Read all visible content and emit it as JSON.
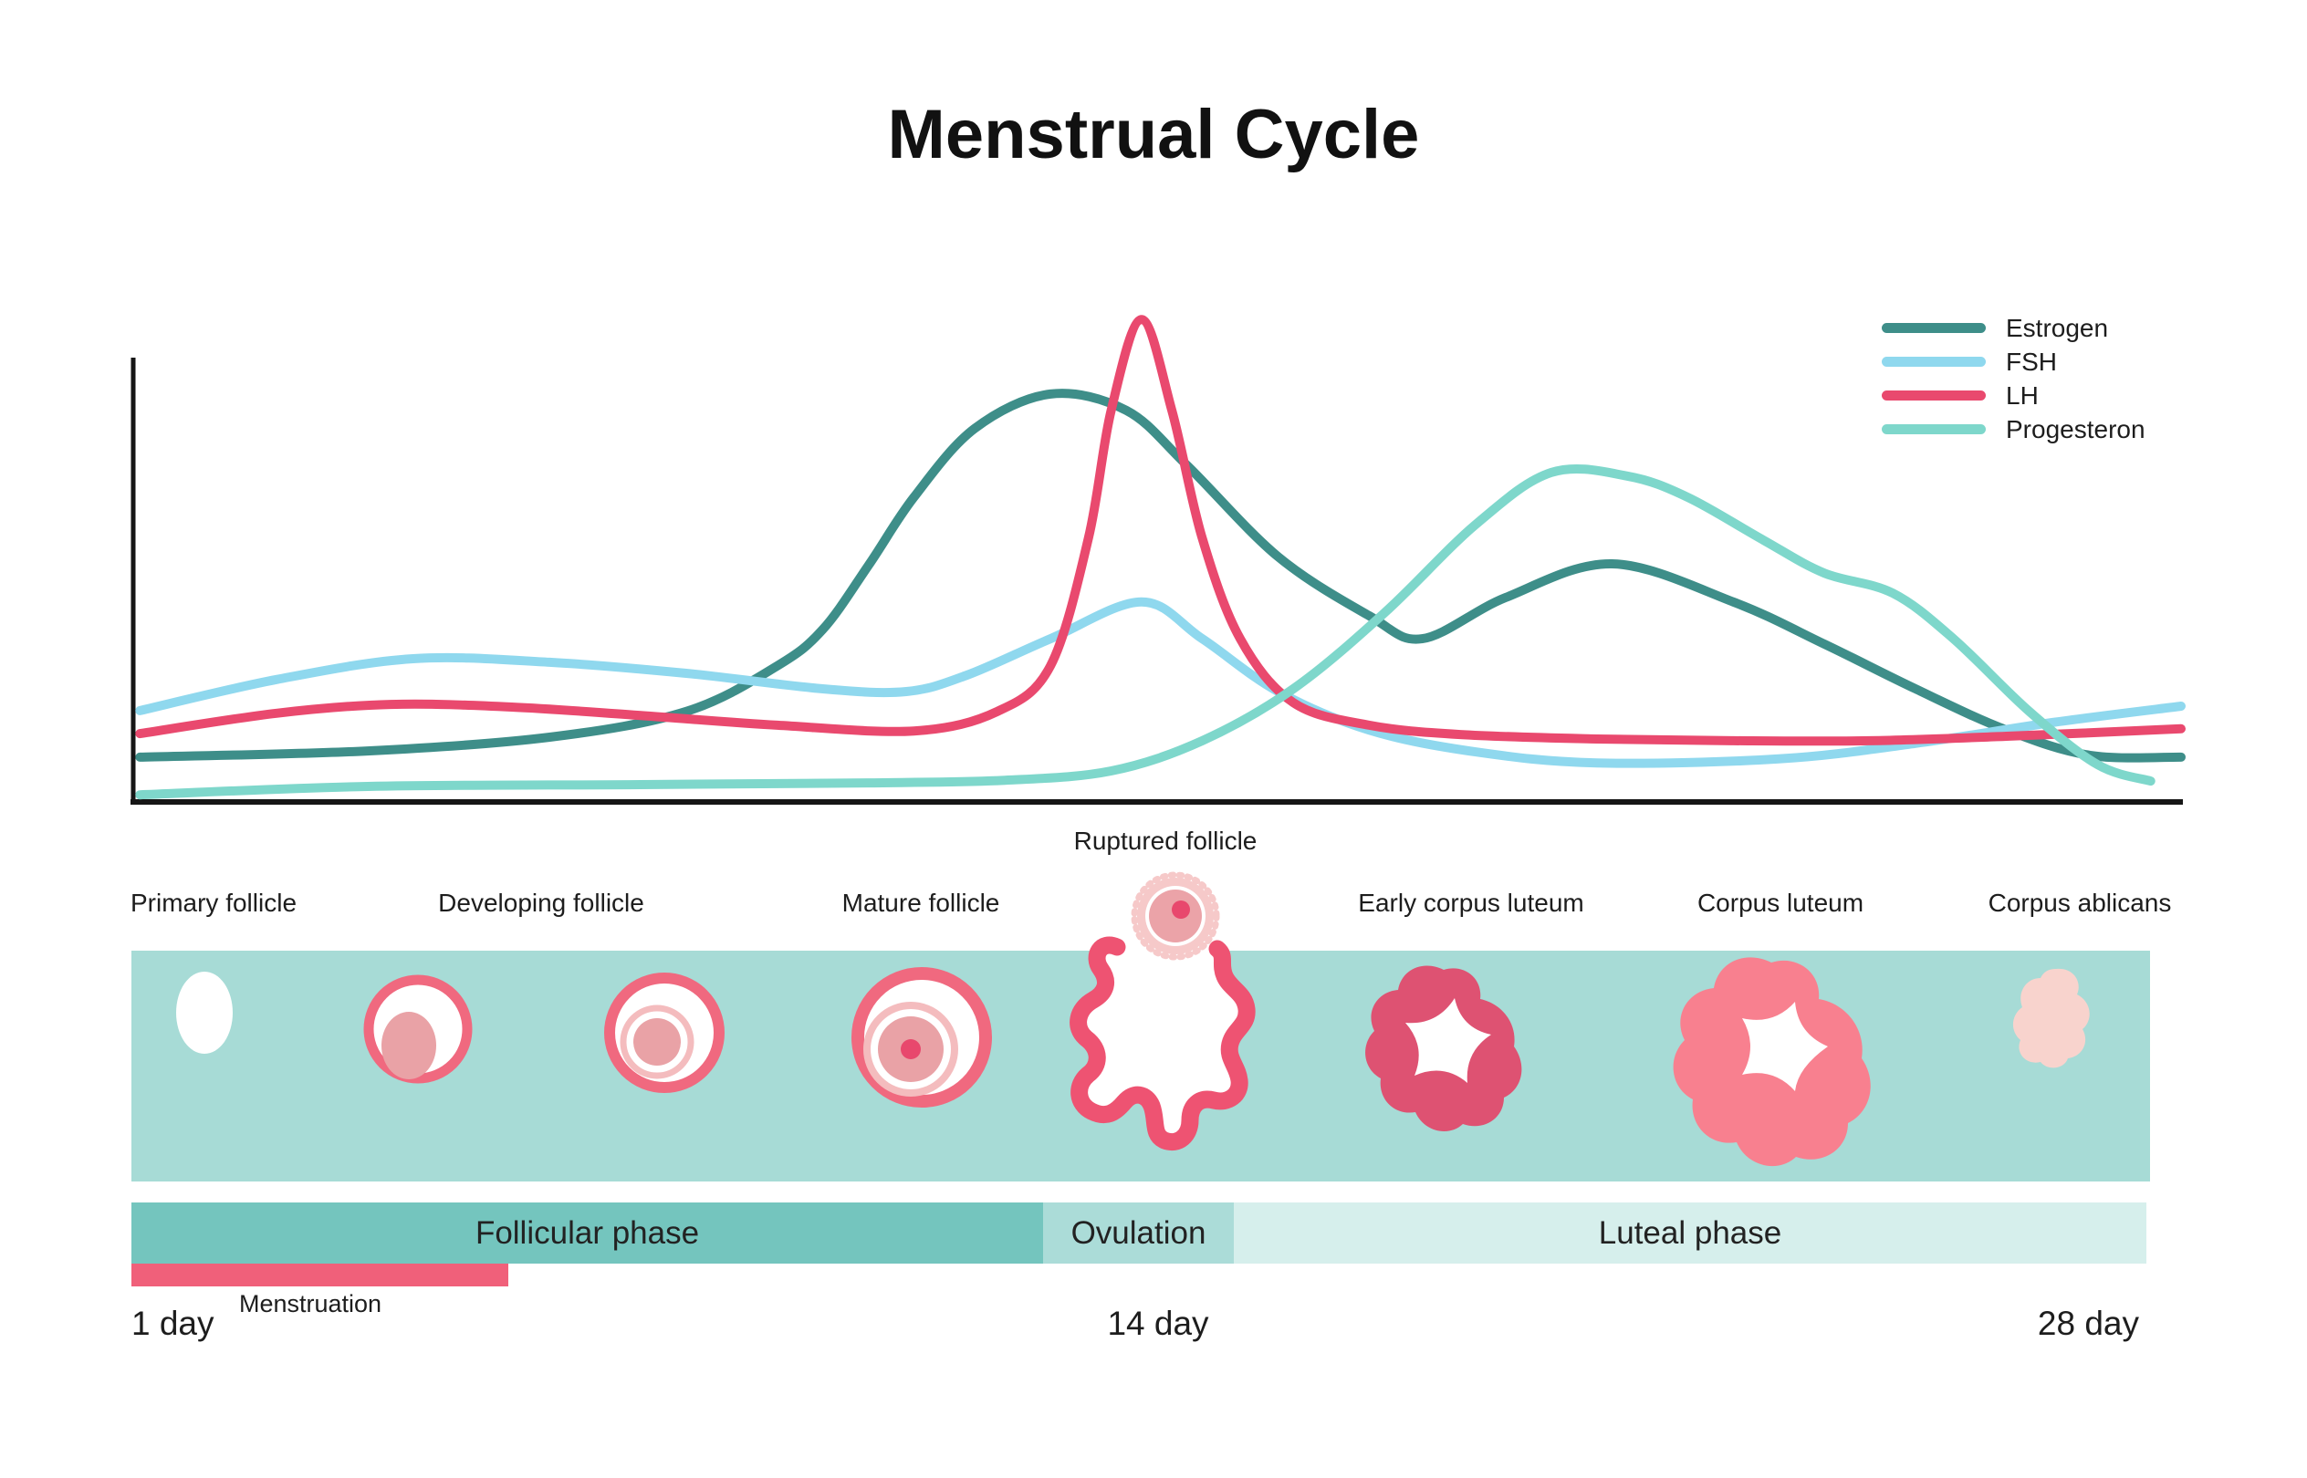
{
  "title": "Menstrual Cycle",
  "colors": {
    "background": "#FFFFFF",
    "estrogen": "#3E8E89",
    "fsh": "#8FD8EE",
    "lh": "#E9496E",
    "progesteron": "#7ED7CB",
    "ovary_band": "#A7DBD6",
    "follicular_bar": "#74C5BE",
    "ovulation_bar": "#ABDCD8",
    "luteal_bar": "#D6EFEC",
    "menstruation_bar": "#F0607A",
    "follicle_ring": "#F0697F",
    "follicle_inner": "#E9A2A6",
    "follicle_light_ring": "#F4BCBE",
    "ovum_dot": "#E8486D",
    "ruptured_outline": "#EE5372",
    "early_corpus_luteum": "#DE5272",
    "corpus_luteum": "#F8808F",
    "corpus_ablicans": "#F8D3CD",
    "axis": "#161616"
  },
  "chart_data": {
    "type": "line",
    "title": "Menstrual Cycle",
    "xlabel": "",
    "ylabel": "",
    "x_axis": {
      "unit": "day",
      "range": [
        1,
        28
      ],
      "ticks_visible": false
    },
    "y_axis": {
      "range": [
        0,
        100
      ],
      "ticks_visible": false,
      "note": "relative hormone level, unlabeled axis; LH peak overshoots axis top"
    },
    "grid": false,
    "legend_position": "top-right",
    "series": [
      {
        "name": "Estrogen",
        "color": "#3E8E89",
        "points": [
          [
            1.1,
            9.9
          ],
          [
            4.1,
            11.3
          ],
          [
            6.5,
            14.4
          ],
          [
            8.3,
            20.2
          ],
          [
            9.5,
            30.5
          ],
          [
            10.1,
            38.7
          ],
          [
            10.7,
            53.1
          ],
          [
            11.3,
            68.5
          ],
          [
            12.1,
            84.0
          ],
          [
            13.1,
            91.8
          ],
          [
            14.1,
            88.1
          ],
          [
            14.9,
            75.7
          ],
          [
            16.1,
            55.1
          ],
          [
            17.3,
            41.8
          ],
          [
            18.0,
            36.6
          ],
          [
            19.1,
            45.9
          ],
          [
            20.5,
            53.5
          ],
          [
            22.1,
            44.9
          ],
          [
            23.3,
            35.4
          ],
          [
            24.5,
            25.3
          ],
          [
            25.7,
            16.0
          ],
          [
            26.8,
            10.3
          ],
          [
            28.0,
            9.9
          ]
        ]
      },
      {
        "name": "FSH",
        "color": "#8FD8EE",
        "points": [
          [
            1.1,
            20.4
          ],
          [
            2.9,
            27.4
          ],
          [
            4.7,
            32.1
          ],
          [
            6.5,
            31.3
          ],
          [
            8.3,
            28.8
          ],
          [
            10.1,
            25.3
          ],
          [
            11.2,
            24.7
          ],
          [
            12.0,
            28.4
          ],
          [
            13.1,
            36.6
          ],
          [
            14.3,
            44.9
          ],
          [
            15.1,
            36.6
          ],
          [
            16.1,
            24.7
          ],
          [
            17.3,
            16.0
          ],
          [
            18.7,
            11.1
          ],
          [
            20.3,
            8.6
          ],
          [
            22.7,
            9.5
          ],
          [
            24.5,
            13.0
          ],
          [
            26.3,
            17.7
          ],
          [
            28.0,
            21.4
          ]
        ]
      },
      {
        "name": "LH",
        "color": "#E9496E",
        "points": [
          [
            1.1,
            15.2
          ],
          [
            2.9,
            19.8
          ],
          [
            4.4,
            21.8
          ],
          [
            6.0,
            21.2
          ],
          [
            7.7,
            19.3
          ],
          [
            9.5,
            17.1
          ],
          [
            11.3,
            15.8
          ],
          [
            12.4,
            20.2
          ],
          [
            13.1,
            30.5
          ],
          [
            13.6,
            59.3
          ],
          [
            13.9,
            88.1
          ],
          [
            14.3,
            108.6
          ],
          [
            14.7,
            88.1
          ],
          [
            15.1,
            59.3
          ],
          [
            15.6,
            36.6
          ],
          [
            16.3,
            22.2
          ],
          [
            17.3,
            17.1
          ],
          [
            18.5,
            15.0
          ],
          [
            20.3,
            14.0
          ],
          [
            22.1,
            13.6
          ],
          [
            23.9,
            13.6
          ],
          [
            25.7,
            14.6
          ],
          [
            28.0,
            16.3
          ]
        ]
      },
      {
        "name": "Progesteron",
        "color": "#7ED7CB",
        "points": [
          [
            1.1,
            1.4
          ],
          [
            4.1,
            3.3
          ],
          [
            7.7,
            3.7
          ],
          [
            10.7,
            4.1
          ],
          [
            12.5,
            4.7
          ],
          [
            13.9,
            6.8
          ],
          [
            15.1,
            13.6
          ],
          [
            16.3,
            25.3
          ],
          [
            17.5,
            42.4
          ],
          [
            18.7,
            62.3
          ],
          [
            19.7,
            74.1
          ],
          [
            20.7,
            73.3
          ],
          [
            21.5,
            68.5
          ],
          [
            22.5,
            58.8
          ],
          [
            23.3,
            51.4
          ],
          [
            24.2,
            46.9
          ],
          [
            25.0,
            36.6
          ],
          [
            26.0,
            20.2
          ],
          [
            26.9,
            8.2
          ],
          [
            27.6,
            4.5
          ]
        ]
      }
    ]
  },
  "stages": [
    {
      "label": "Primary follicle"
    },
    {
      "label": "Developing follicle"
    },
    {
      "label": "Mature follicle"
    },
    {
      "label": "Ruptured follicle"
    },
    {
      "label": "Early corpus luteum"
    },
    {
      "label": "Corpus luteum"
    },
    {
      "label": "Corpus ablicans"
    }
  ],
  "phases": {
    "follicular": {
      "label": "Follicular phase",
      "color": "#74C5BE",
      "day_range": [
        1,
        13
      ]
    },
    "ovulation": {
      "label": "Ovulation",
      "color": "#ABDCD8",
      "day_range": [
        13,
        15.5
      ]
    },
    "luteal": {
      "label": "Luteal phase",
      "color": "#D6EFEC",
      "day_range": [
        15.5,
        28
      ]
    },
    "menstruation": {
      "label": "Menstruation",
      "color": "#F0607A",
      "day_range": [
        1,
        6
      ]
    }
  },
  "day_labels": {
    "start": "1 day",
    "middle": "14 day",
    "end": "28 day"
  }
}
